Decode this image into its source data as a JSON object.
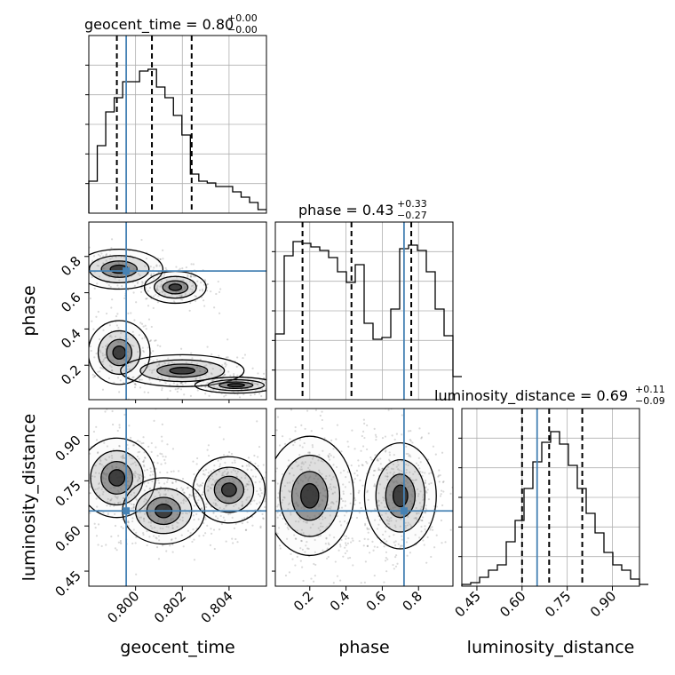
{
  "chart_data": {
    "type": "corner",
    "grid": true,
    "colors": {
      "truth": "#4682b4",
      "hist": "#000000",
      "density": "#000000"
    },
    "parameters": [
      {
        "name": "geocent_time",
        "xlabel": "geocent_time",
        "title_prefix": "geocent_time = 0.80",
        "err_plus": "+0.00",
        "err_minus": "−0.00",
        "range": [
          0.798,
          0.8056
        ],
        "ticks": [
          0.8,
          0.802,
          0.804
        ],
        "tick_labels": [
          "0.800",
          "0.802",
          "0.804"
        ],
        "truth": 0.7996,
        "quantiles": [
          0.7992,
          0.8007,
          0.8024
        ],
        "hist_bin_edges_start": 0.798,
        "hist_bin_width": 0.000362,
        "hist_counts": [
          0.18,
          0.38,
          0.57,
          0.65,
          0.74,
          0.74,
          0.8,
          0.81,
          0.71,
          0.65,
          0.55,
          0.44,
          0.22,
          0.18,
          0.17,
          0.15,
          0.15,
          0.12,
          0.09,
          0.06,
          0.02
        ]
      },
      {
        "name": "phase",
        "xlabel": "phase",
        "ylabel": "phase",
        "title_prefix": "phase = 0.43",
        "err_plus": "+0.33",
        "err_minus": "−0.27",
        "range": [
          0.01,
          0.99
        ],
        "ticks": [
          0.2,
          0.4,
          0.6,
          0.8
        ],
        "tick_labels": [
          "0.2",
          "0.4",
          "0.6",
          "0.8"
        ],
        "truth": 0.72,
        "quantiles": [
          0.16,
          0.43,
          0.76
        ],
        "hist_bin_edges_start": 0.01,
        "hist_bin_width": 0.049,
        "hist_counts": [
          0.37,
          0.81,
          0.89,
          0.88,
          0.86,
          0.84,
          0.8,
          0.72,
          0.66,
          0.76,
          0.43,
          0.34,
          0.35,
          0.51,
          0.85,
          0.87,
          0.84,
          0.72,
          0.51,
          0.36,
          0.13
        ]
      },
      {
        "name": "luminosity_distance",
        "xlabel": "luminosity_distance",
        "ylabel": "luminosity_distance",
        "title_prefix": "luminosity_distance = 0.69",
        "err_plus": "+0.11",
        "err_minus": "−0.09",
        "range": [
          0.4,
          0.99
        ],
        "ticks": [
          0.45,
          0.6,
          0.75,
          0.9
        ],
        "tick_labels": [
          "0.45",
          "0.60",
          "0.75",
          "0.90"
        ],
        "truth": 0.65,
        "quantiles": [
          0.6,
          0.69,
          0.8
        ],
        "hist_bin_edges_start": 0.4,
        "hist_bin_width": 0.0295,
        "hist_counts": [
          0.01,
          0.02,
          0.05,
          0.09,
          0.12,
          0.25,
          0.37,
          0.55,
          0.7,
          0.81,
          0.87,
          0.8,
          0.68,
          0.55,
          0.41,
          0.3,
          0.19,
          0.12,
          0.09,
          0.04,
          0.01
        ]
      }
    ],
    "scatter_panels": [
      {
        "x_param": "geocent_time",
        "y_param": "phase",
        "modes": [
          {
            "x": 0.7993,
            "y": 0.73,
            "sx": 0.00085,
            "sy": 0.05
          },
          {
            "x": 0.8017,
            "y": 0.63,
            "sx": 0.0006,
            "sy": 0.04
          },
          {
            "x": 0.7993,
            "y": 0.27,
            "sx": 0.0006,
            "sy": 0.08
          },
          {
            "x": 0.802,
            "y": 0.17,
            "sx": 0.0012,
            "sy": 0.04
          },
          {
            "x": 0.8043,
            "y": 0.09,
            "sx": 0.0008,
            "sy": 0.02
          }
        ]
      },
      {
        "x_param": "geocent_time",
        "y_param": "luminosity_distance",
        "modes": [
          {
            "x": 0.7992,
            "y": 0.76,
            "sx": 0.00075,
            "sy": 0.06
          },
          {
            "x": 0.8012,
            "y": 0.65,
            "sx": 0.0008,
            "sy": 0.05
          },
          {
            "x": 0.804,
            "y": 0.72,
            "sx": 0.0007,
            "sy": 0.05
          }
        ]
      },
      {
        "x_param": "phase",
        "y_param": "luminosity_distance",
        "modes": [
          {
            "x": 0.2,
            "y": 0.7,
            "sx": 0.11,
            "sy": 0.09
          },
          {
            "x": 0.7,
            "y": 0.7,
            "sx": 0.09,
            "sy": 0.08
          }
        ]
      }
    ]
  }
}
